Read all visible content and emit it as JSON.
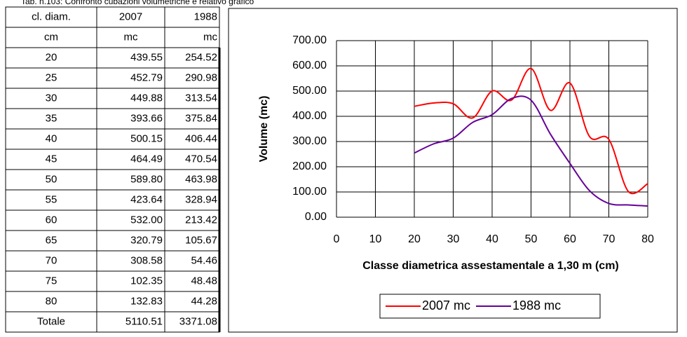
{
  "caption": "Tab. n.103: Confronto cubazioni volumetriche e relativo grafico",
  "table": {
    "header": [
      [
        "cl. diam.",
        "2007",
        "1988"
      ],
      [
        "cm",
        "mc",
        "mc"
      ]
    ],
    "rows": [
      [
        "20",
        "439.55",
        "254.52"
      ],
      [
        "25",
        "452.79",
        "290.98"
      ],
      [
        "30",
        "449.88",
        "313.54"
      ],
      [
        "35",
        "393.66",
        "375.84"
      ],
      [
        "40",
        "500.15",
        "406.44"
      ],
      [
        "45",
        "464.49",
        "470.54"
      ],
      [
        "50",
        "589.80",
        "463.98"
      ],
      [
        "55",
        "423.64",
        "328.94"
      ],
      [
        "60",
        "532.00",
        "213.42"
      ],
      [
        "65",
        "320.79",
        "105.67"
      ],
      [
        "70",
        "308.58",
        "54.46"
      ],
      [
        "75",
        "102.35",
        "48.48"
      ],
      [
        "80",
        "132.83",
        "44.28"
      ]
    ],
    "total": [
      "Totale",
      "5110.51",
      "3371.08"
    ]
  },
  "chart_data": {
    "type": "line",
    "x": [
      20,
      25,
      30,
      35,
      40,
      45,
      50,
      55,
      60,
      65,
      70,
      75,
      80
    ],
    "series": [
      {
        "name": "2007 mc",
        "color": "#ff0000",
        "values": [
          439.55,
          452.79,
          449.88,
          393.66,
          500.15,
          464.49,
          589.8,
          423.64,
          532.0,
          320.79,
          308.58,
          102.35,
          132.83
        ]
      },
      {
        "name": "1988 mc",
        "color": "#660099",
        "values": [
          254.52,
          290.98,
          313.54,
          375.84,
          406.44,
          470.54,
          463.98,
          328.94,
          213.42,
          105.67,
          54.46,
          48.48,
          44.28
        ]
      }
    ],
    "xlabel": "Classe diametrica assestamentale a 1,30 m (cm)",
    "ylabel": "Volume (mc)",
    "xlim": [
      0,
      80
    ],
    "xticks": [
      0,
      10,
      20,
      30,
      40,
      50,
      60,
      70,
      80
    ],
    "ylim": [
      0,
      700
    ],
    "yticks": [
      {
        "value": 0,
        "label": "0.00"
      },
      {
        "value": 100,
        "label": "100.00"
      },
      {
        "value": 200,
        "label": "200.00"
      },
      {
        "value": 300,
        "label": "300.00"
      },
      {
        "value": 400,
        "label": "400.00"
      },
      {
        "value": 500,
        "label": "500.00"
      },
      {
        "value": 600,
        "label": "600.00"
      },
      {
        "value": 700,
        "label": "700.00"
      }
    ],
    "grid": true,
    "smooth": true,
    "legend": "bottom"
  }
}
